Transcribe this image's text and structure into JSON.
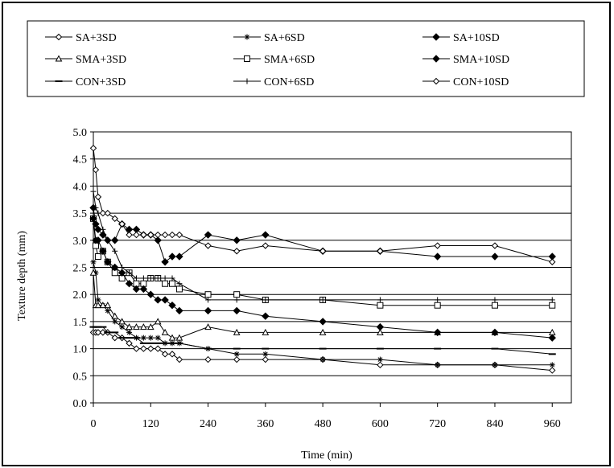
{
  "chart_data": {
    "type": "line",
    "title": "",
    "xlabel": "Time (min)",
    "ylabel": "Texture depth (mm)",
    "xlim": [
      0,
      1000
    ],
    "ylim": [
      0,
      5
    ],
    "x_ticks": [
      0,
      120,
      240,
      360,
      480,
      600,
      720,
      840,
      960
    ],
    "y_ticks": [
      "0.0",
      "0.5",
      "1.0",
      "1.5",
      "2.0",
      "2.5",
      "3.0",
      "3.5",
      "4.0",
      "4.5",
      "5.0"
    ],
    "grid": "horizontal",
    "legend_position": "top",
    "series": [
      {
        "name": "SA+3SD",
        "marker": "diamond-open",
        "color": "#000000",
        "x": [
          0,
          5,
          10,
          20,
          30,
          45,
          60,
          75,
          90,
          105,
          120,
          135,
          150,
          165,
          180,
          240,
          300,
          360,
          480,
          600,
          720,
          840,
          960
        ],
        "y": [
          1.3,
          1.3,
          1.3,
          1.3,
          1.3,
          1.2,
          1.2,
          1.1,
          1.0,
          1.0,
          1.0,
          1.0,
          0.9,
          0.9,
          0.8,
          0.8,
          0.8,
          0.8,
          0.8,
          0.7,
          0.7,
          0.7,
          0.6
        ]
      },
      {
        "name": "SA+6SD",
        "marker": "asterisk",
        "color": "#000000",
        "x": [
          0,
          5,
          10,
          20,
          30,
          45,
          60,
          75,
          90,
          105,
          120,
          135,
          150,
          165,
          180,
          240,
          300,
          360,
          480,
          600,
          720,
          840,
          960
        ],
        "y": [
          2.6,
          2.4,
          1.9,
          1.8,
          1.7,
          1.5,
          1.4,
          1.3,
          1.2,
          1.2,
          1.2,
          1.2,
          1.1,
          1.1,
          1.1,
          1.0,
          0.9,
          0.9,
          0.8,
          0.8,
          0.7,
          0.7,
          0.7
        ]
      },
      {
        "name": "SA+10SD",
        "marker": "diamond-filled",
        "color": "#000000",
        "x": [
          0,
          5,
          10,
          20,
          30,
          45,
          60,
          75,
          90,
          105,
          120,
          135,
          150,
          165,
          180,
          240,
          300,
          360,
          480,
          600,
          720,
          840,
          960
        ],
        "y": [
          3.6,
          3.3,
          3.2,
          3.1,
          3.0,
          3.0,
          3.3,
          3.2,
          3.2,
          3.1,
          3.1,
          3.0,
          2.6,
          2.7,
          2.7,
          3.1,
          3.0,
          3.1,
          2.8,
          2.8,
          2.7,
          2.7,
          2.7
        ]
      },
      {
        "name": "SMA+3SD",
        "marker": "triangle-open",
        "color": "#000000",
        "x": [
          0,
          5,
          10,
          20,
          30,
          45,
          60,
          75,
          90,
          105,
          120,
          135,
          150,
          165,
          180,
          240,
          300,
          360,
          480,
          600,
          720,
          840,
          960
        ],
        "y": [
          2.4,
          1.8,
          1.8,
          1.8,
          1.8,
          1.6,
          1.5,
          1.4,
          1.4,
          1.4,
          1.4,
          1.5,
          1.3,
          1.2,
          1.2,
          1.4,
          1.3,
          1.3,
          1.3,
          1.3,
          1.3,
          1.3,
          1.3
        ]
      },
      {
        "name": "SMA+6SD",
        "marker": "square-open",
        "color": "#000000",
        "x": [
          0,
          5,
          10,
          20,
          30,
          45,
          60,
          75,
          90,
          105,
          120,
          135,
          150,
          165,
          180,
          240,
          300,
          360,
          480,
          600,
          720,
          840,
          960
        ],
        "y": [
          3.4,
          2.9,
          2.7,
          2.8,
          2.6,
          2.4,
          2.3,
          2.4,
          2.2,
          2.2,
          2.3,
          2.3,
          2.2,
          2.2,
          2.1,
          2.0,
          2.0,
          1.9,
          1.9,
          1.8,
          1.8,
          1.8,
          1.8
        ]
      },
      {
        "name": "SMA+10SD",
        "marker": "diamond-filled",
        "color": "#000000",
        "x": [
          0,
          5,
          10,
          20,
          30,
          45,
          60,
          75,
          90,
          105,
          120,
          135,
          150,
          165,
          180,
          240,
          300,
          360,
          480,
          600,
          720,
          840,
          960
        ],
        "y": [
          3.4,
          3.0,
          3.0,
          2.8,
          2.6,
          2.5,
          2.4,
          2.2,
          2.1,
          2.1,
          2.0,
          1.9,
          1.9,
          1.8,
          1.7,
          1.7,
          1.7,
          1.6,
          1.5,
          1.4,
          1.3,
          1.3,
          1.2
        ]
      },
      {
        "name": "CON+3SD",
        "marker": "dash",
        "color": "#000000",
        "x": [
          0,
          5,
          10,
          20,
          30,
          45,
          60,
          75,
          90,
          105,
          120,
          135,
          150,
          165,
          180,
          240,
          300,
          360,
          480,
          600,
          720,
          840,
          960
        ],
        "y": [
          1.4,
          1.4,
          1.4,
          1.4,
          1.3,
          1.3,
          1.2,
          1.2,
          1.2,
          1.1,
          1.1,
          1.1,
          1.1,
          1.1,
          1.1,
          1.0,
          1.0,
          1.0,
          1.0,
          1.0,
          1.0,
          1.0,
          0.9
        ]
      },
      {
        "name": "CON+6SD",
        "marker": "plus",
        "color": "#000000",
        "x": [
          0,
          5,
          10,
          20,
          30,
          45,
          60,
          75,
          90,
          105,
          120,
          135,
          150,
          165,
          180,
          240,
          300,
          360,
          480,
          600,
          720,
          840,
          960
        ],
        "y": [
          3.9,
          3.6,
          3.5,
          3.2,
          3.0,
          2.8,
          2.5,
          2.4,
          2.3,
          2.3,
          2.3,
          2.3,
          2.3,
          2.3,
          2.2,
          1.9,
          1.9,
          1.9,
          1.9,
          1.9,
          1.9,
          1.9,
          1.9
        ]
      },
      {
        "name": "CON+10SD",
        "marker": "diamond-open",
        "color": "#000000",
        "x": [
          0,
          5,
          10,
          20,
          30,
          45,
          60,
          75,
          90,
          105,
          120,
          135,
          150,
          165,
          180,
          240,
          300,
          360,
          480,
          600,
          720,
          840,
          960
        ],
        "y": [
          4.7,
          4.3,
          3.8,
          3.5,
          3.5,
          3.4,
          3.3,
          3.1,
          3.1,
          3.1,
          3.1,
          3.1,
          3.1,
          3.1,
          3.1,
          2.9,
          2.8,
          2.9,
          2.8,
          2.8,
          2.9,
          2.9,
          2.6
        ]
      }
    ]
  }
}
